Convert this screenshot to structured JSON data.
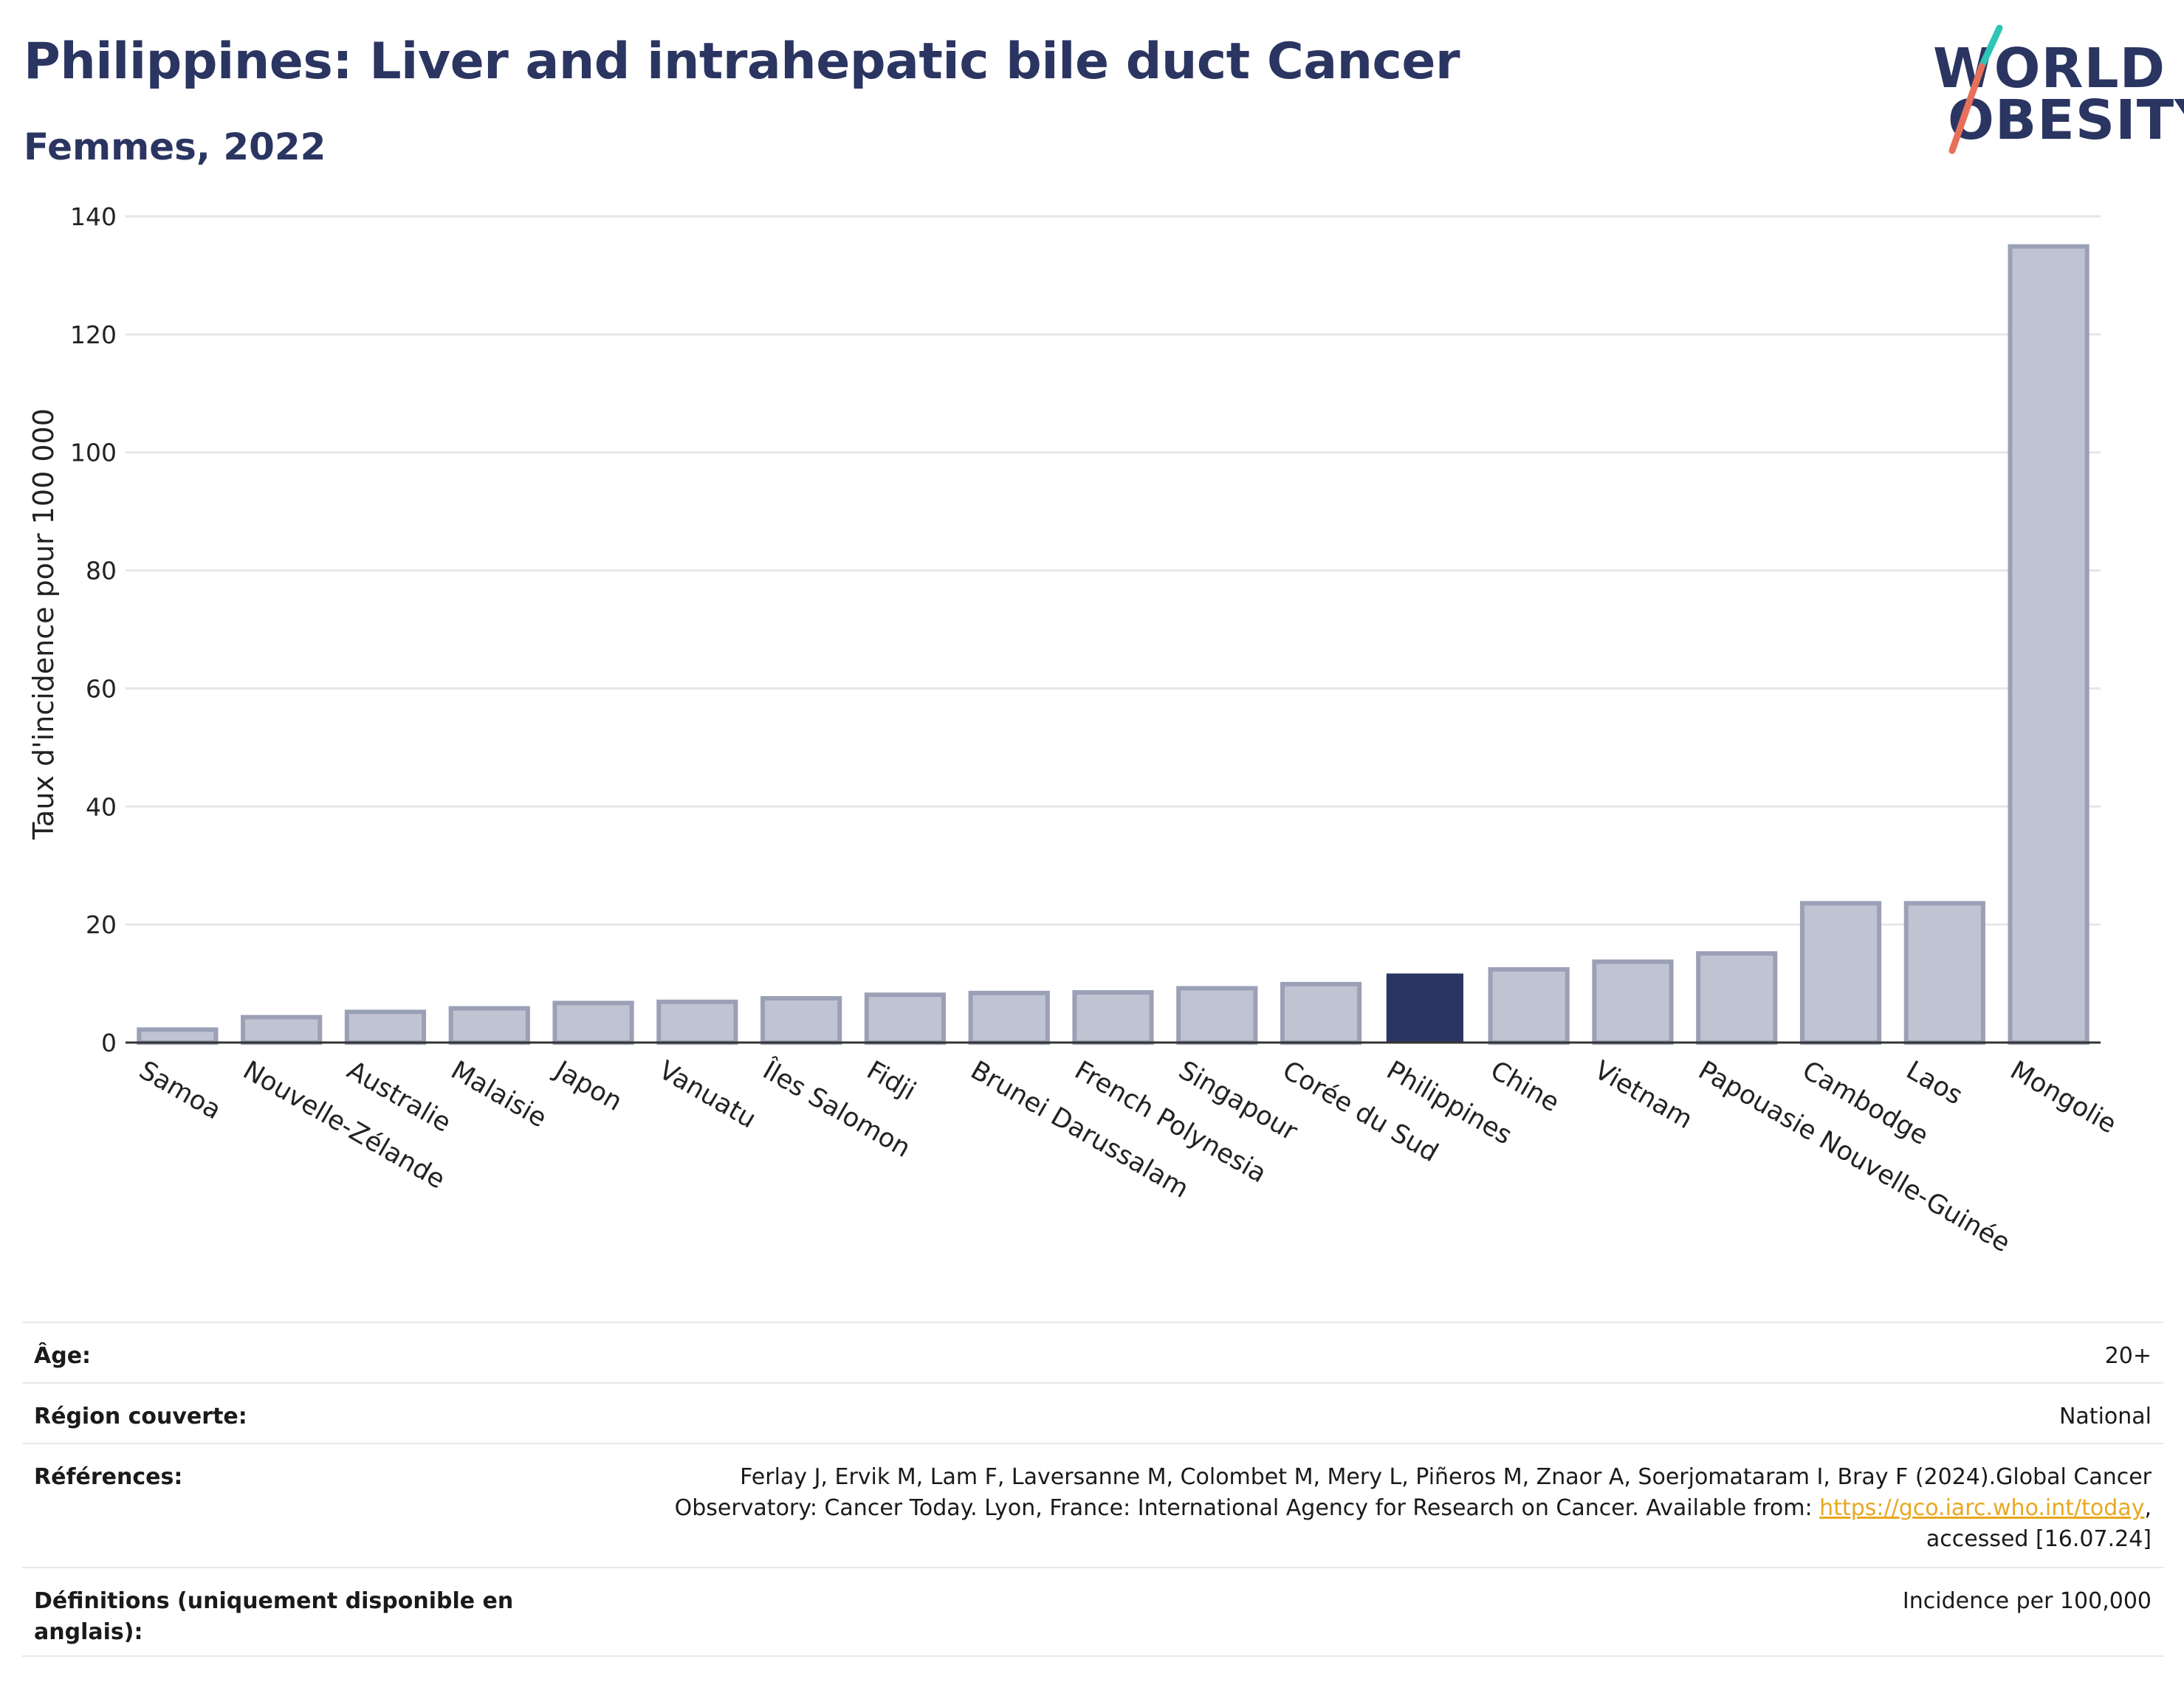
{
  "header": {
    "title": "Philippines: Liver and intrahepatic bile duct Cancer",
    "subtitle": "Femmes, 2022"
  },
  "logo": {
    "line1": "WORLD",
    "line2": "OBESITY",
    "colors": {
      "text": "#2b3561",
      "slash_top": "#2ec4b6",
      "slash_bottom": "#e8705a"
    }
  },
  "colors": {
    "bar_default": "#c0c4d2",
    "bar_default_edge": "#9aa0b6",
    "bar_highlight": "#2b3561",
    "grid": "#e6e6ea",
    "axis": "#333333"
  },
  "chart_data": {
    "type": "bar",
    "title": "Philippines: Liver and intrahepatic bile duct Cancer",
    "subtitle": "Femmes, 2022",
    "xlabel": "",
    "ylabel": "Taux d'incidence pour 100 000",
    "ylim": [
      0,
      140
    ],
    "yticks": [
      0,
      20,
      40,
      60,
      80,
      100,
      120,
      140
    ],
    "grid": true,
    "highlight": "Philippines",
    "categories": [
      "Samoa",
      "Nouvelle-Zélande",
      "Australie",
      "Malaisie",
      "Japon",
      "Vanuatu",
      "Îles Salomon",
      "Fidji",
      "Brunei Darussalam",
      "French Polynesia",
      "Singapour",
      "Corée du Sud",
      "Philippines",
      "Chine",
      "Vietnam",
      "Papouasie Nouvelle-Guinée",
      "Cambodge",
      "Laos",
      "Mongolie"
    ],
    "values": [
      2.2,
      4.3,
      5.2,
      5.8,
      6.7,
      6.9,
      7.5,
      8.1,
      8.4,
      8.5,
      9.2,
      9.9,
      11.7,
      12.4,
      13.7,
      15.1,
      23.6,
      23.6,
      134.9
    ]
  },
  "meta": {
    "rows": [
      {
        "label": "Âge:",
        "value": "20+"
      },
      {
        "label": "Région couverte:",
        "value": "National"
      },
      {
        "label": "Références:",
        "value_pre": "Ferlay J, Ervik M, Lam F, Laversanne M, Colombet M, Mery L, Piñeros M, Znaor A, Soerjomataram I, Bray F (2024).Global Cancer Observatory: Cancer Today. Lyon, France: International Agency for Research on Cancer. Available from: ",
        "link": "https://gco.iarc.who.int/today",
        "value_post": ", accessed [16.07.24]"
      },
      {
        "label": "Définitions (uniquement disponible en anglais):",
        "value": "Incidence per 100,000"
      }
    ]
  }
}
